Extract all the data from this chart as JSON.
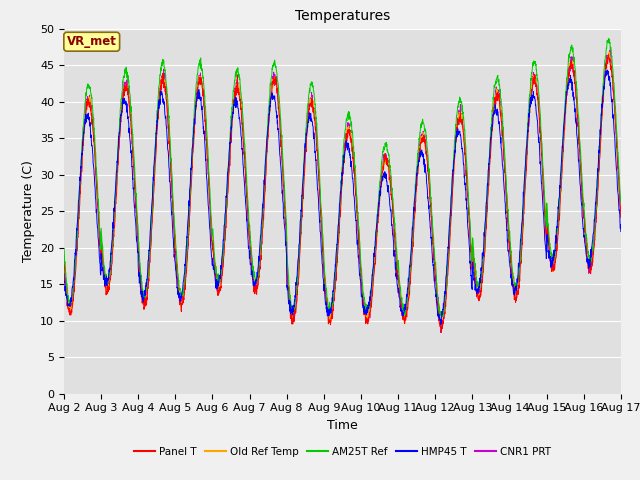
{
  "title": "Temperatures",
  "xlabel": "Time",
  "ylabel": "Temperature (C)",
  "ylim": [
    0,
    50
  ],
  "xlim": [
    0,
    15
  ],
  "background_color": "#f0f0f0",
  "plot_bg_color": "#e0e0e0",
  "annotation_text": "VR_met",
  "annotation_bg": "#ffff99",
  "annotation_border": "#8b6914",
  "x_tick_labels": [
    "Aug 2",
    "Aug 3",
    "Aug 4",
    "Aug 5",
    "Aug 6",
    "Aug 7",
    "Aug 8",
    "Aug 9",
    "Aug 10",
    "Aug 11",
    "Aug 12",
    "Aug 13",
    "Aug 14",
    "Aug 15",
    "Aug 16",
    "Aug 17"
  ],
  "yticks": [
    0,
    5,
    10,
    15,
    20,
    25,
    30,
    35,
    40,
    45,
    50
  ],
  "series_colors": {
    "Panel T": "#ff0000",
    "Old Ref Temp": "#ffa500",
    "AM25T Ref": "#00cc00",
    "HMP45 T": "#0000ff",
    "CNR1 PRT": "#cc00cc"
  },
  "legend_labels": [
    "Panel T",
    "Old Ref Temp",
    "AM25T Ref",
    "HMP45 T",
    "CNR1 PRT"
  ],
  "figsize": [
    6.4,
    4.8
  ],
  "dpi": 100,
  "title_fontsize": 10,
  "axis_fontsize": 9,
  "tick_fontsize": 8
}
